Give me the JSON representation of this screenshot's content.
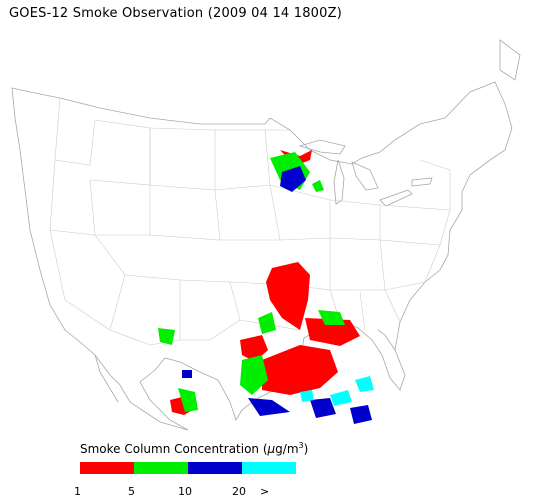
{
  "title": "GOES-12 Smoke Observation (2009 04 14  1800Z)",
  "legend": {
    "title_prefix": "Smoke Column Concentration (",
    "unit_mu": "μ",
    "unit_rest": "g/m",
    "unit_sup": "3",
    "title_suffix": ")",
    "colors": [
      "#ff0000",
      "#00ee00",
      "#0000cc",
      "#00ffff"
    ],
    "ticks": [
      "1",
      "5",
      "10",
      "20",
      ">"
    ]
  }
}
